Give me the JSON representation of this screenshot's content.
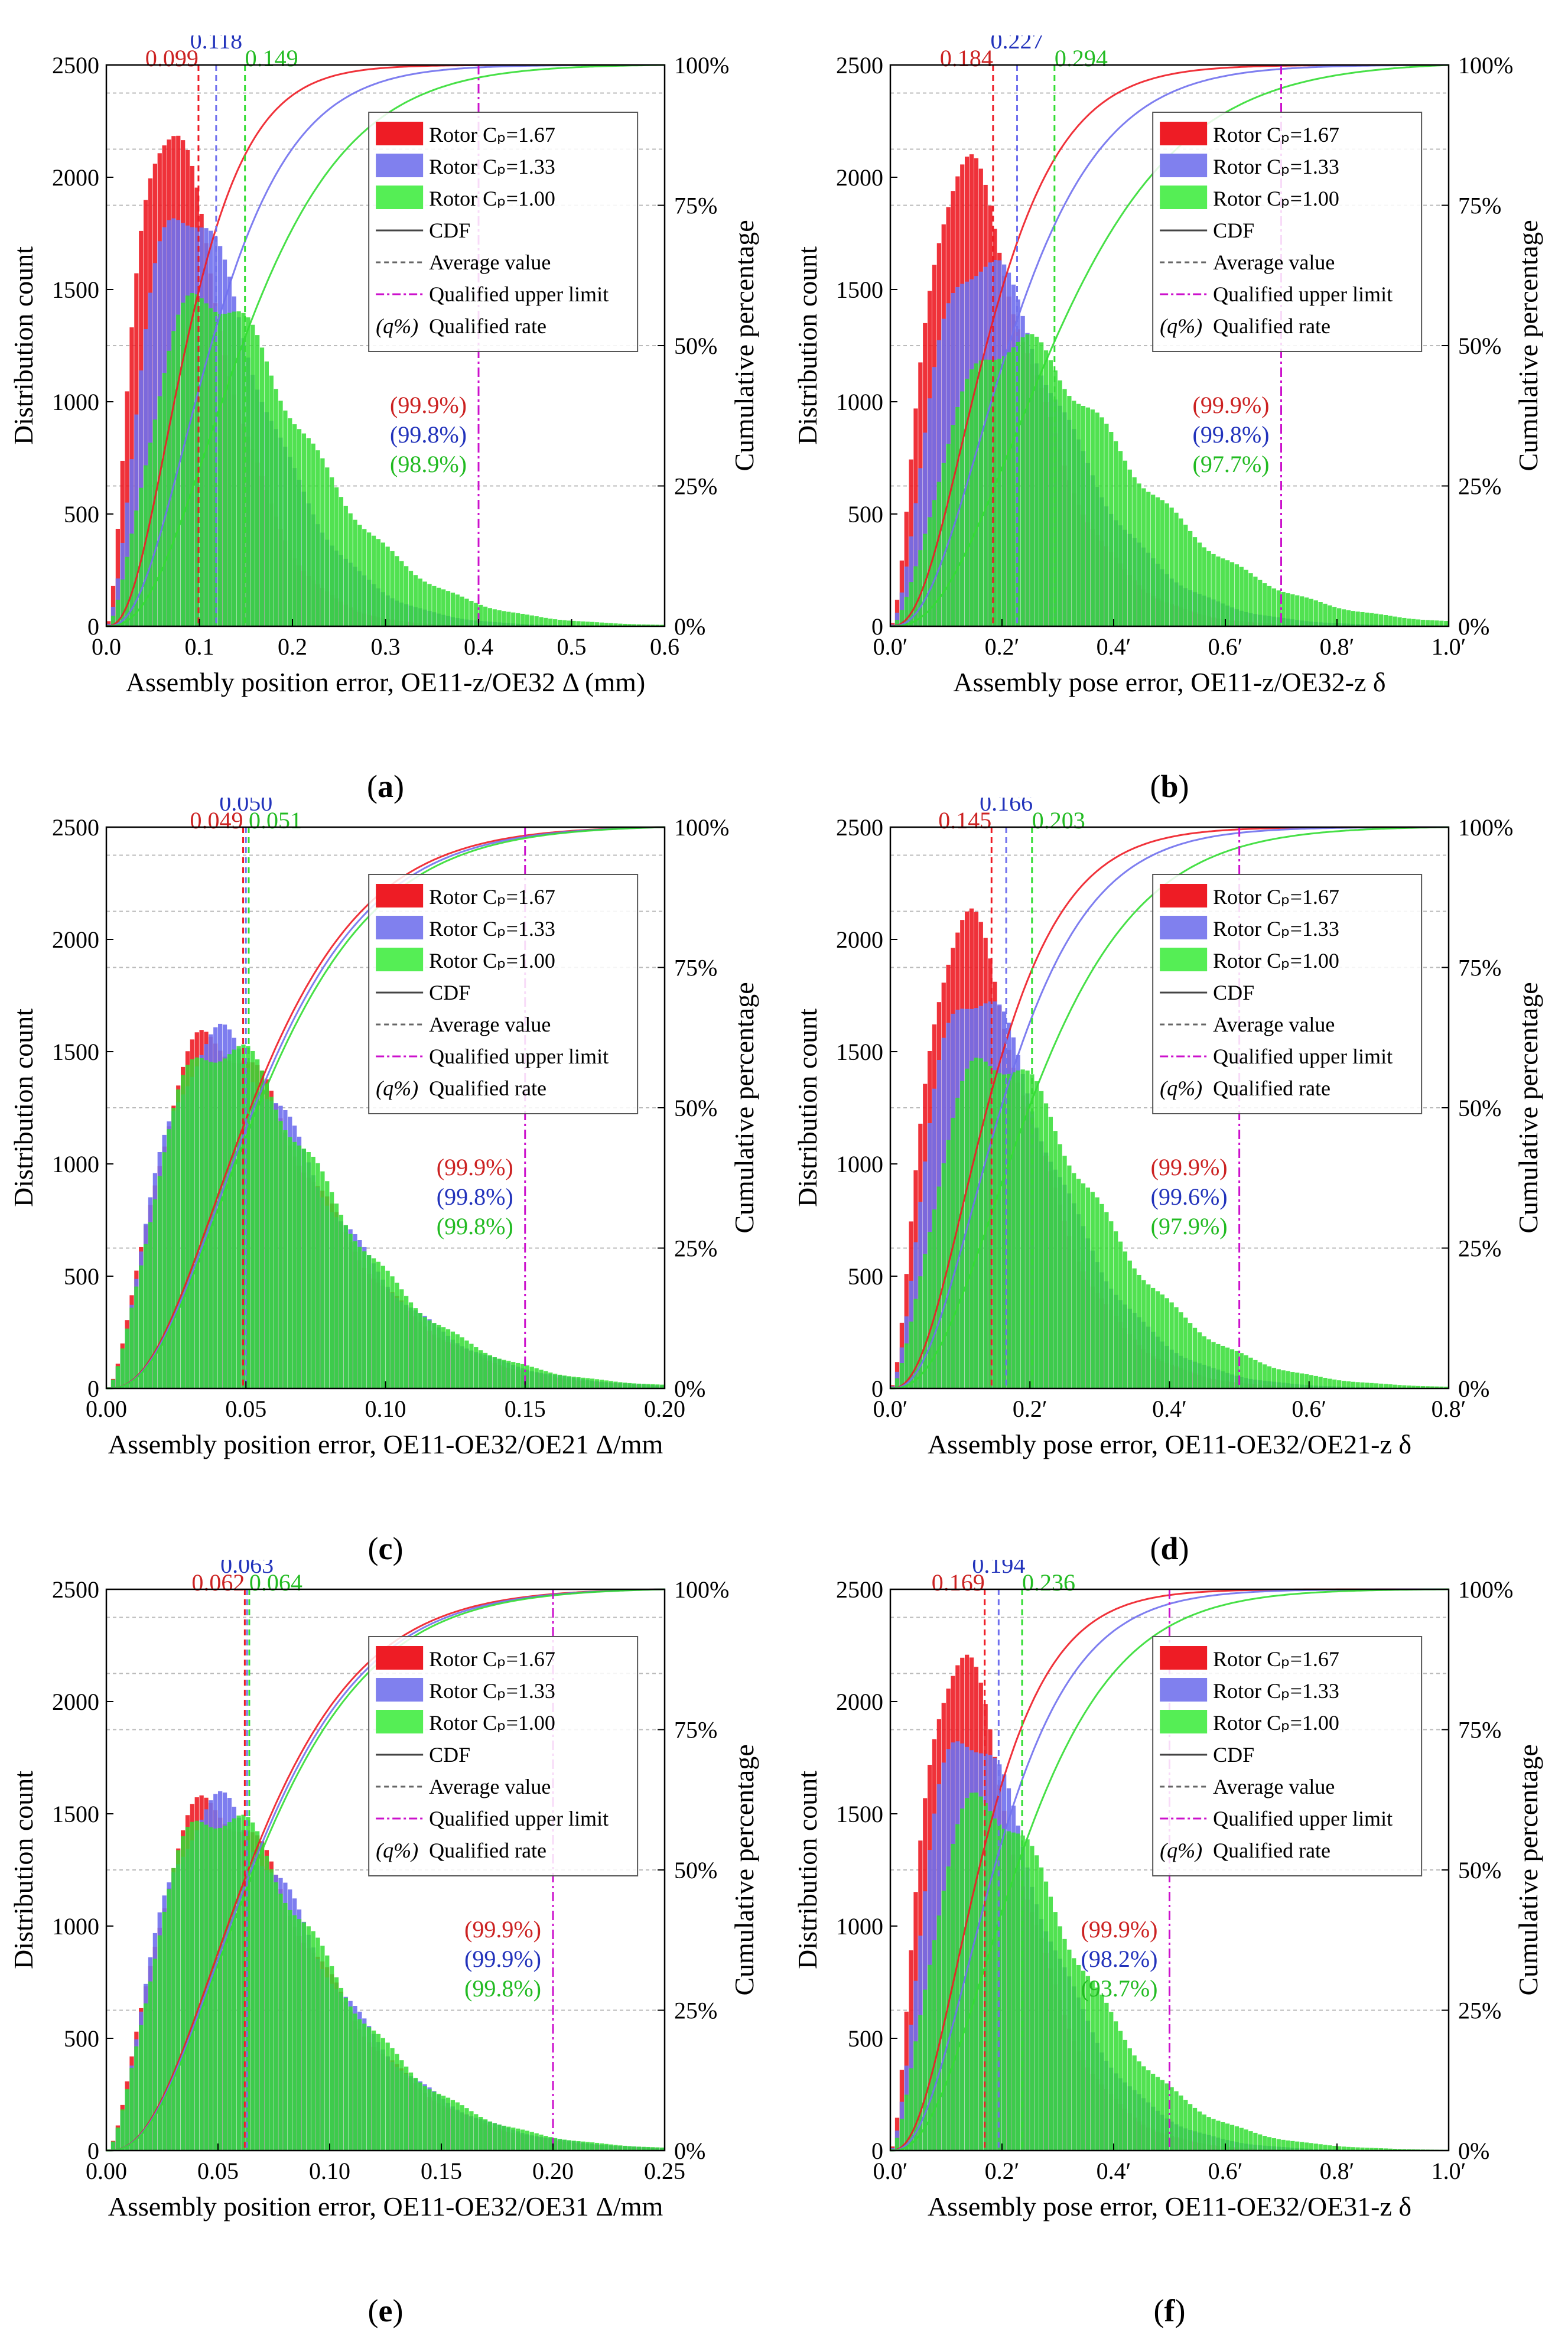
{
  "legend": {
    "cp167": "Rotor Cₚ=1.67",
    "cp133": "Rotor Cₚ=1.33",
    "cp100": "Rotor Cₚ=1.00",
    "cdf": "CDF",
    "avg": "Average value",
    "limit": "Qualified upper limit",
    "rate_prefix": "(q%)",
    "rate": "Qualified rate"
  },
  "colors": {
    "red": "#ee1c25",
    "blue": "#7070ee",
    "green": "#33dd33",
    "limit": "#cc11cc"
  },
  "chart_data": [
    {
      "panel": "a",
      "type": "bar",
      "xlabel": "Assembly position error, OE11-z/OE32 Δ (mm)",
      "ylabel": "Distribution count",
      "y2label": "Cumulative percentage",
      "xlim": [
        0,
        0.6
      ],
      "ylim": [
        0,
        2500
      ],
      "xticks": [
        "0.0",
        "0.1",
        "0.2",
        "0.3",
        "0.4",
        "0.5",
        "0.6"
      ],
      "yticks": [
        "0",
        "500",
        "1000",
        "1500",
        "2000",
        "2500"
      ],
      "y2ticks": [
        "0%",
        "25%",
        "50%",
        "75%",
        "100%"
      ],
      "series": [
        {
          "name": "Rotor Cₚ=1.67",
          "color": "red",
          "mode": 0.065,
          "peak": 2250,
          "mean": 0.099,
          "mean_label": "0.099",
          "rate": "(99.9%)"
        },
        {
          "name": "Rotor Cₚ=1.33",
          "color": "blue",
          "mode": 0.085,
          "peak": 1880,
          "mean": 0.118,
          "mean_label": "0.118",
          "rate": "(99.8%)"
        },
        {
          "name": "Rotor Cₚ=1.00",
          "color": "green",
          "mode": 0.11,
          "peak": 1480,
          "mean": 0.149,
          "mean_label": "0.149",
          "rate": "(98.9%)"
        }
      ],
      "limit": 0.4
    },
    {
      "panel": "b",
      "type": "bar",
      "xlabel": "Assembly pose error, OE11-z/OE32-z δ",
      "ylabel": "Distribution count",
      "y2label": "Cumulative percentage",
      "xlim": [
        0,
        1.0
      ],
      "ylim": [
        0,
        2500
      ],
      "xticks": [
        "0.0′",
        "0.2′",
        "0.4′",
        "0.6′",
        "0.8′",
        "1.0′"
      ],
      "yticks": [
        "0",
        "500",
        "1000",
        "1500",
        "2000",
        "2500"
      ],
      "y2ticks": [
        "0%",
        "25%",
        "50%",
        "75%",
        "100%"
      ],
      "series": [
        {
          "name": "Rotor Cₚ=1.67",
          "color": "red",
          "mode": 0.13,
          "peak": 2050,
          "mean": 0.184,
          "mean_label": "0.184",
          "rate": "(99.9%)"
        },
        {
          "name": "Rotor Cₚ=1.33",
          "color": "blue",
          "mode": 0.16,
          "peak": 1640,
          "mean": 0.227,
          "mean_label": "0.227",
          "rate": "(99.8%)"
        },
        {
          "name": "Rotor Cₚ=1.00",
          "color": "green",
          "mode": 0.22,
          "peak": 1270,
          "mean": 0.294,
          "mean_label": "0.294",
          "rate": "(97.7%)"
        }
      ],
      "limit": 0.7
    },
    {
      "panel": "c",
      "type": "bar",
      "xlabel": "Assembly position error, OE11-OE32/OE21 Δ/mm",
      "ylabel": "Distribution count",
      "y2label": "Cumulative percentage",
      "xlim": [
        0,
        0.2
      ],
      "ylim": [
        0,
        2500
      ],
      "xticks": [
        "0.00",
        "0.05",
        "0.10",
        "0.15",
        "0.20"
      ],
      "yticks": [
        "0",
        "500",
        "1000",
        "1500",
        "2000",
        "2500"
      ],
      "y2ticks": [
        "0%",
        "25%",
        "50%",
        "75%",
        "100%"
      ],
      "series": [
        {
          "name": "Rotor Cₚ=1.67",
          "color": "red",
          "mode": 0.039,
          "peak": 1560,
          "mean": 0.049,
          "mean_label": "0.049",
          "rate": "(99.9%)"
        },
        {
          "name": "Rotor Cₚ=1.33",
          "color": "blue",
          "mode": 0.04,
          "peak": 1550,
          "mean": 0.05,
          "mean_label": "0.050",
          "rate": "(99.8%)"
        },
        {
          "name": "Rotor Cₚ=1.00",
          "color": "green",
          "mode": 0.041,
          "peak": 1530,
          "mean": 0.051,
          "mean_label": "0.051",
          "rate": "(99.8%)"
        }
      ],
      "limit": 0.15
    },
    {
      "panel": "d",
      "type": "bar",
      "xlabel": "Assembly pose error, OE11-OE32/OE21-z δ",
      "ylabel": "Distribution count",
      "y2label": "Cumulative percentage",
      "xlim": [
        0,
        0.8
      ],
      "ylim": [
        0,
        2500
      ],
      "xticks": [
        "0.0′",
        "0.2′",
        "0.4′",
        "0.6′",
        "0.8′"
      ],
      "yticks": [
        "0",
        "500",
        "1000",
        "1500",
        "2000",
        "2500"
      ],
      "y2ticks": [
        "0%",
        "25%",
        "50%",
        "75%",
        "100%"
      ],
      "series": [
        {
          "name": "Rotor Cₚ=1.67",
          "color": "red",
          "mode": 0.105,
          "peak": 2080,
          "mean": 0.145,
          "mean_label": "0.145",
          "rate": "(99.9%)"
        },
        {
          "name": "Rotor Cₚ=1.33",
          "color": "blue",
          "mode": 0.12,
          "peak": 1780,
          "mean": 0.166,
          "mean_label": "0.166",
          "rate": "(99.6%)"
        },
        {
          "name": "Rotor Cₚ=1.00",
          "color": "green",
          "mode": 0.15,
          "peak": 1480,
          "mean": 0.203,
          "mean_label": "0.203",
          "rate": "(97.9%)"
        }
      ],
      "limit": 0.5
    },
    {
      "panel": "e",
      "type": "bar",
      "xlabel": "Assembly position error, OE11-OE32/OE31 Δ/mm",
      "ylabel": "Distribution count",
      "y2label": "Cumulative percentage",
      "xlim": [
        0,
        0.25
      ],
      "ylim": [
        0,
        2500
      ],
      "xticks": [
        "0.00",
        "0.05",
        "0.10",
        "0.15",
        "0.20",
        "0.25"
      ],
      "yticks": [
        "0",
        "500",
        "1000",
        "1500",
        "2000",
        "2500"
      ],
      "y2ticks": [
        "0%",
        "25%",
        "50%",
        "75%",
        "100%"
      ],
      "series": [
        {
          "name": "Rotor Cₚ=1.67",
          "color": "red",
          "mode": 0.048,
          "peak": 1540,
          "mean": 0.062,
          "mean_label": "0.062",
          "rate": "(99.9%)"
        },
        {
          "name": "Rotor Cₚ=1.33",
          "color": "blue",
          "mode": 0.049,
          "peak": 1530,
          "mean": 0.063,
          "mean_label": "0.063",
          "rate": "(99.9%)"
        },
        {
          "name": "Rotor Cₚ=1.00",
          "color": "green",
          "mode": 0.05,
          "peak": 1510,
          "mean": 0.064,
          "mean_label": "0.064",
          "rate": "(99.8%)"
        }
      ],
      "limit": 0.2
    },
    {
      "panel": "f",
      "type": "bar",
      "xlabel": "Assembly pose error, OE11-OE32/OE31-z δ",
      "ylabel": "Distribution count",
      "y2label": "Cumulative percentage",
      "xlim": [
        0,
        1.0
      ],
      "ylim": [
        0,
        2500
      ],
      "xticks": [
        "0.0′",
        "0.2′",
        "0.4′",
        "0.6′",
        "0.8′",
        "1.0′"
      ],
      "yticks": [
        "0",
        "500",
        "1000",
        "1500",
        "2000",
        "2500"
      ],
      "y2ticks": [
        "0%",
        "25%",
        "50%",
        "75%",
        "100%"
      ],
      "series": [
        {
          "name": "Rotor Cₚ=1.67",
          "color": "red",
          "mode": 0.12,
          "peak": 2200,
          "mean": 0.169,
          "mean_label": "0.169",
          "rate": "(99.9%)"
        },
        {
          "name": "Rotor Cₚ=1.33",
          "color": "blue",
          "mode": 0.14,
          "peak": 1880,
          "mean": 0.194,
          "mean_label": "0.194",
          "rate": "(98.2%)"
        },
        {
          "name": "Rotor Cₚ=1.00",
          "color": "green",
          "mode": 0.17,
          "peak": 1560,
          "mean": 0.236,
          "mean_label": "0.236",
          "rate": "(93.7%)"
        }
      ],
      "limit": 0.5
    }
  ],
  "captions": [
    "a",
    "b",
    "c",
    "d",
    "e",
    "f"
  ]
}
